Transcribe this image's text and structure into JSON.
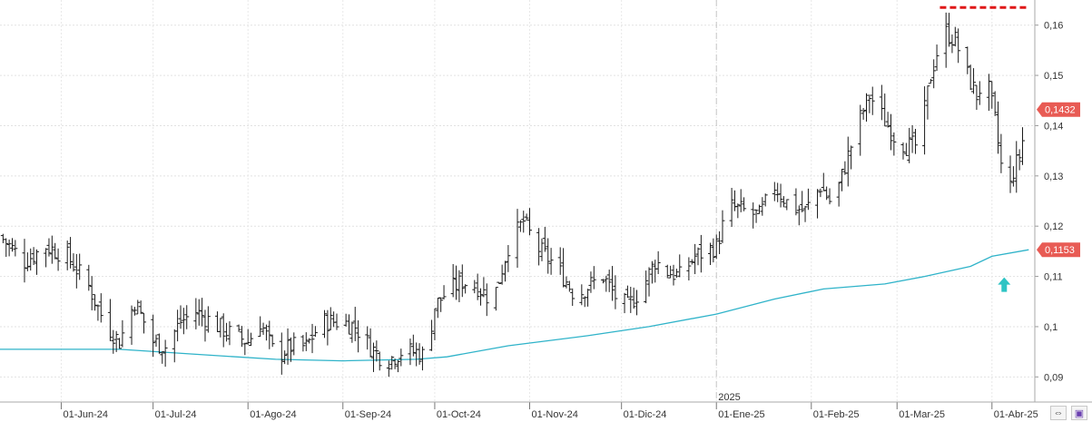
{
  "chart_data": {
    "type": "ohlc-bar",
    "title": "",
    "xlabel": "",
    "ylabel": "",
    "ylim": [
      0.085,
      0.165
    ],
    "y_ticks": [
      0.09,
      0.1,
      0.11,
      0.12,
      0.13,
      0.14,
      0.15,
      0.16
    ],
    "y_tick_labels": [
      "0,09",
      "0,1",
      "0,11",
      "0,12",
      "0,13",
      "0,14",
      "0,15",
      "0,16"
    ],
    "x_start": "2024-05-12",
    "x_end": "2025-04-15",
    "x_tick_labels": [
      {
        "date": "2024-06-01",
        "label": "01-Jun-24"
      },
      {
        "date": "2024-07-01",
        "label": "01-Jul-24"
      },
      {
        "date": "2024-08-01",
        "label": "01-Ago-24"
      },
      {
        "date": "2024-09-01",
        "label": "01-Sep-24"
      },
      {
        "date": "2024-10-01",
        "label": "01-Oct-24"
      },
      {
        "date": "2024-11-01",
        "label": "01-Nov-24"
      },
      {
        "date": "2024-12-01",
        "label": "01-Dic-24"
      },
      {
        "date": "2025-01-01",
        "label": "01-Ene-25"
      },
      {
        "date": "2025-02-01",
        "label": "01-Feb-25"
      },
      {
        "date": "2025-03-01",
        "label": "01-Mar-25"
      },
      {
        "date": "2025-04-01",
        "label": "01-Abr-25"
      }
    ],
    "year_marker": {
      "date": "2025-01-01",
      "label": "2025"
    },
    "price_label": {
      "value": 0.1432,
      "text": "0,1432"
    },
    "ma_label": {
      "value": 0.1153,
      "text": "0,1153"
    },
    "resistance_level": {
      "value": 0.1635,
      "from": "2025-03-15",
      "to": "2025-04-13"
    },
    "arrow_marker": {
      "date": "2025-04-05",
      "value": 0.108,
      "direction": "up"
    },
    "close_points": [
      [
        "2024-05-12",
        0.118
      ],
      [
        "2024-05-20",
        0.113
      ],
      [
        "2024-05-27",
        0.116
      ],
      [
        "2024-06-03",
        0.114
      ],
      [
        "2024-06-10",
        0.108
      ],
      [
        "2024-06-15",
        0.101
      ],
      [
        "2024-06-20",
        0.097
      ],
      [
        "2024-06-25",
        0.105
      ],
      [
        "2024-07-01",
        0.097
      ],
      [
        "2024-07-05",
        0.096
      ],
      [
        "2024-07-10",
        0.101
      ],
      [
        "2024-07-15",
        0.103
      ],
      [
        "2024-07-20",
        0.101
      ],
      [
        "2024-07-25",
        0.099
      ],
      [
        "2024-08-01",
        0.097
      ],
      [
        "2024-08-05",
        0.101
      ],
      [
        "2024-08-10",
        0.094
      ],
      [
        "2024-08-15",
        0.096
      ],
      [
        "2024-08-20",
        0.096
      ],
      [
        "2024-08-25",
        0.101
      ],
      [
        "2024-09-01",
        0.101
      ],
      [
        "2024-09-05",
        0.1
      ],
      [
        "2024-09-10",
        0.096
      ],
      [
        "2024-09-15",
        0.093
      ],
      [
        "2024-09-20",
        0.095
      ],
      [
        "2024-09-25",
        0.095
      ],
      [
        "2024-09-28",
        0.094
      ],
      [
        "2024-10-01",
        0.104
      ],
      [
        "2024-10-05",
        0.107
      ],
      [
        "2024-10-10",
        0.109
      ],
      [
        "2024-10-15",
        0.108
      ],
      [
        "2024-10-20",
        0.105
      ],
      [
        "2024-10-25",
        0.116
      ],
      [
        "2024-10-30",
        0.121
      ],
      [
        "2024-11-03",
        0.116
      ],
      [
        "2024-11-08",
        0.113
      ],
      [
        "2024-11-12",
        0.11
      ],
      [
        "2024-11-16",
        0.106
      ],
      [
        "2024-11-20",
        0.108
      ],
      [
        "2024-11-25",
        0.11
      ],
      [
        "2024-11-29",
        0.106
      ],
      [
        "2024-12-03",
        0.104
      ],
      [
        "2024-12-08",
        0.108
      ],
      [
        "2024-12-12",
        0.113
      ],
      [
        "2024-12-16",
        0.111
      ],
      [
        "2024-12-20",
        0.11
      ],
      [
        "2024-12-25",
        0.114
      ],
      [
        "2025-01-01",
        0.116
      ],
      [
        "2025-01-05",
        0.124
      ],
      [
        "2025-01-10",
        0.123
      ],
      [
        "2025-01-15",
        0.122
      ],
      [
        "2025-01-20",
        0.128
      ],
      [
        "2025-01-25",
        0.124
      ],
      [
        "2025-01-30",
        0.123
      ],
      [
        "2025-02-04",
        0.128
      ],
      [
        "2025-02-08",
        0.124
      ],
      [
        "2025-02-12",
        0.132
      ],
      [
        "2025-02-16",
        0.14
      ],
      [
        "2025-02-20",
        0.146
      ],
      [
        "2025-02-24",
        0.142
      ],
      [
        "2025-02-28",
        0.138
      ],
      [
        "2025-03-04",
        0.136
      ],
      [
        "2025-03-08",
        0.136
      ],
      [
        "2025-03-12",
        0.15
      ],
      [
        "2025-03-16",
        0.159
      ],
      [
        "2025-03-20",
        0.157
      ],
      [
        "2025-03-24",
        0.15
      ],
      [
        "2025-03-27",
        0.146
      ],
      [
        "2025-03-30",
        0.15
      ],
      [
        "2025-04-02",
        0.141
      ],
      [
        "2025-04-04",
        0.132
      ],
      [
        "2025-04-06",
        0.125
      ],
      [
        "2025-04-08",
        0.131
      ],
      [
        "2025-04-10",
        0.134
      ],
      [
        "2025-04-13",
        0.143
      ]
    ],
    "ma_points": [
      [
        "2024-05-12",
        0.0955
      ],
      [
        "2024-06-20",
        0.0955
      ],
      [
        "2024-07-15",
        0.0945
      ],
      [
        "2024-08-10",
        0.0935
      ],
      [
        "2024-09-01",
        0.0932
      ],
      [
        "2024-09-25",
        0.0935
      ],
      [
        "2024-10-05",
        0.094
      ],
      [
        "2024-10-25",
        0.0962
      ],
      [
        "2024-11-20",
        0.0982
      ],
      [
        "2024-12-10",
        0.1
      ],
      [
        "2025-01-01",
        0.1025
      ],
      [
        "2025-01-20",
        0.1055
      ],
      [
        "2025-02-05",
        0.1075
      ],
      [
        "2025-02-25",
        0.1085
      ],
      [
        "2025-03-10",
        0.11
      ],
      [
        "2025-03-25",
        0.112
      ],
      [
        "2025-04-01",
        0.114
      ],
      [
        "2025-04-13",
        0.1153
      ]
    ]
  }
}
